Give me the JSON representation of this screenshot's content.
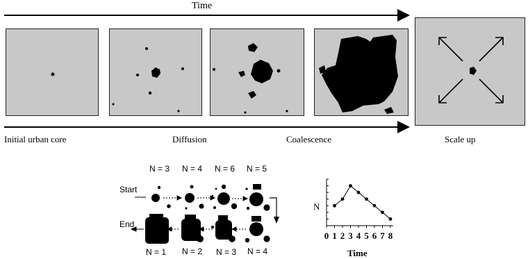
{
  "top_diagram": {
    "time_label": "Time",
    "stages": [
      {
        "label": "Initial urban core"
      },
      {
        "label": "Diffusion"
      },
      {
        "label": "Coalescence"
      },
      {
        "label": "Scale up"
      }
    ]
  },
  "cluster_diagram": {
    "start_label": "Start",
    "end_label": "End",
    "top_counts": [
      "N = 3",
      "N = 4",
      "N = 6",
      "N = 5"
    ],
    "bottom_counts": [
      "N = 1",
      "N = 2",
      "N = 3",
      "N = 4"
    ]
  },
  "chart_data": {
    "type": "line",
    "title": "",
    "xlabel": "Time",
    "ylabel": "N",
    "x": [
      1,
      2,
      3,
      4,
      5,
      6,
      7,
      8
    ],
    "values": [
      3,
      4,
      6,
      5,
      4,
      3,
      2,
      1
    ],
    "xticks": [
      "0",
      "1",
      "2",
      "3",
      "4",
      "5",
      "6",
      "7",
      "8"
    ],
    "xlim": [
      0,
      8
    ],
    "ylim": [
      0,
      7
    ],
    "grid": false
  }
}
